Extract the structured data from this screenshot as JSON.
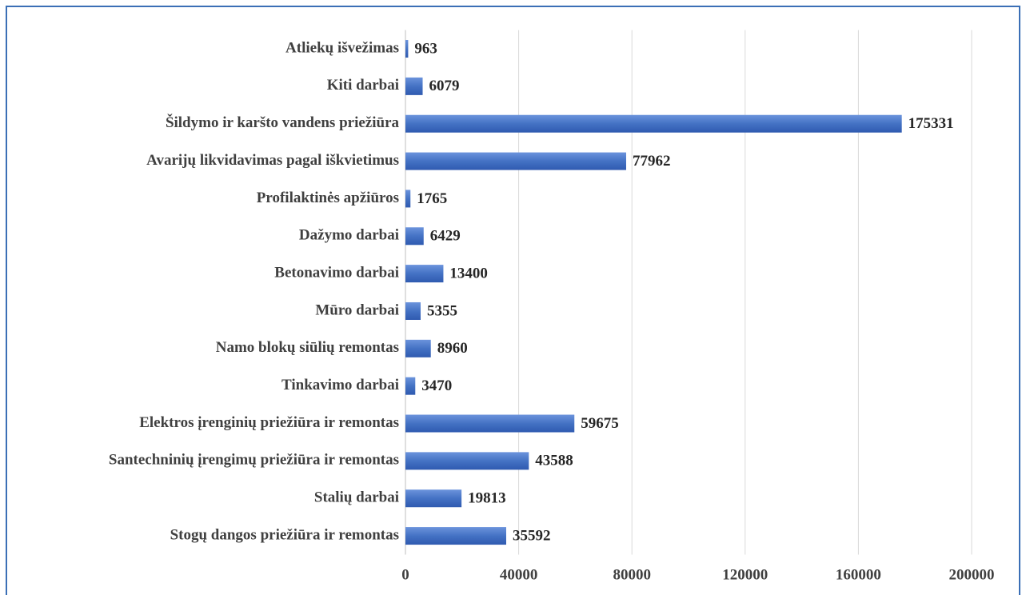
{
  "chart_data": {
    "type": "bar",
    "orientation": "horizontal",
    "categories": [
      "Atliekų išvežimas",
      "Kiti darbai",
      "Šildymo ir karšto vandens priežiūra",
      "Avarijų likvidavimas pagal iškvietimus",
      "Profilaktinės apžiūros",
      "Dažymo darbai",
      "Betonavimo darbai",
      "Mūro darbai",
      "Namo blokų siūlių remontas",
      "Tinkavimo darbai",
      "Elektros įrenginių priežiūra ir remontas",
      "Santechninių įrengimų priežiūra ir remontas",
      "Stalių darbai",
      "Stogų dangos priežiūra ir remontas"
    ],
    "values": [
      963,
      6079,
      175331,
      77962,
      1765,
      6429,
      13400,
      5355,
      8960,
      3470,
      59675,
      43588,
      19813,
      35592
    ],
    "color": "#4472c4",
    "xlim": [
      0,
      200000
    ],
    "xticks": [
      0,
      40000,
      80000,
      120000,
      160000,
      200000
    ],
    "grid": true
  }
}
